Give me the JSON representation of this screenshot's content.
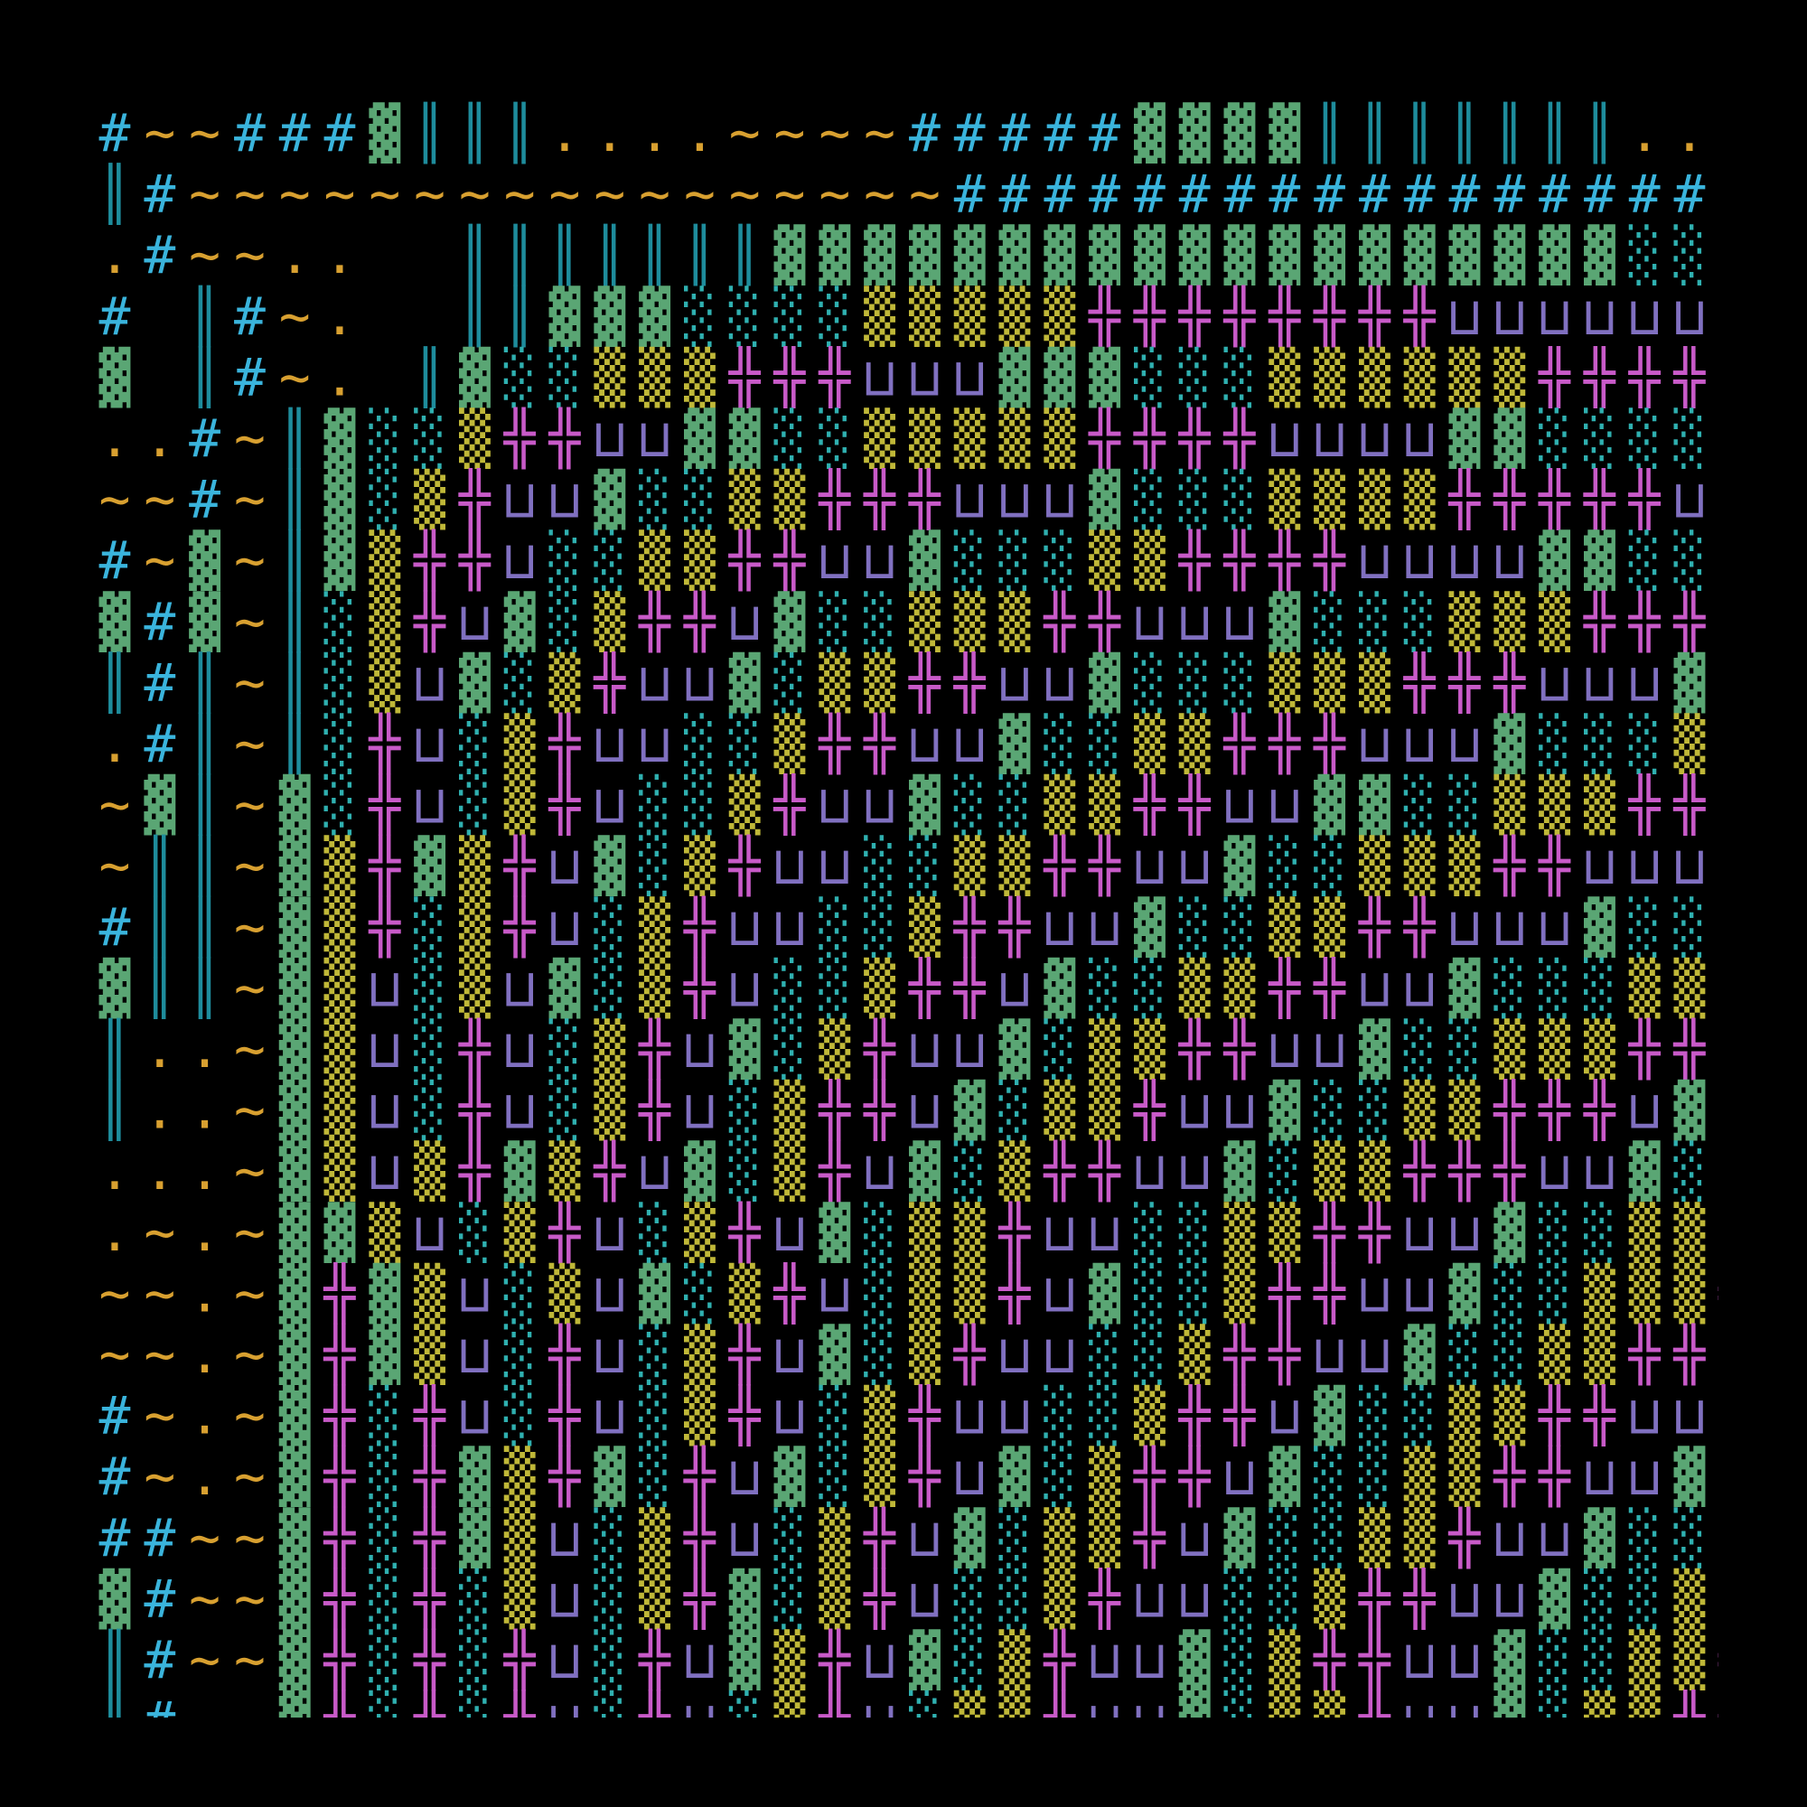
{
  "palette": {
    "#": "#3ab4dc",
    "~": "#d8a030",
    ".": "#d8a030",
    "║": "#1e8c9c",
    "▓": "#5aa674",
    "░": "#2fb0b0",
    "▒": "#c0b838",
    "╬": "#c85ac8",
    "⊔": "#8070c0"
  },
  "background": "#000000",
  "rows": [
    "#~~###▓║║║....~~~~#####▓▓▓▓║║║║║║║..",
    "║#~~~~~~~~~~~~~~~~~#################",
    ".#~~..  ║║║║║║║▓▓▓▓▓▓▓▓▓▓▓▓▓▓▓▓▓▓▓░░░",
    "# ║#~.  ║║▓▓▓░░░░▒▒▒▒▒╬╬╬╬╬╬╬╬⊔⊔⊔⊔⊔⊔",
    "▓ ║#~. ║▓░░▒▒▒╬╬╬⊔⊔⊔▓▓▓░░░▒▒▒▒▒▒╬╬╬╬",
    "..#~║▓░░▒╬╬⊔⊔▓▓░░▒▒▒▒▒╬╬╬╬⊔⊔⊔⊔▓▓░░░░",
    "~~#~║▓░▒╬⊔⊔▓░░▒▒╬╬╬⊔⊔⊔▓░░░▒▒▒▒╬╬╬╬╬⊔",
    "#~▓~║▓▒╬╬⊔░░▒▒╬╬⊔⊔▓░░░▒▒╬╬╬╬⊔⊔⊔⊔▓▓░░",
    "▓#▓~║░▒╬⊔▓░▒╬╬⊔▓░░▒▒▒╬╬⊔⊔⊔▓░░░▒▒▒╬╬╬",
    "║#║~║░▒⊔▓░▒╬⊔⊔▓░▒▒╬╬⊔⊔▓░░░▒▒▒╬╬╬⊔⊔⊔▓",
    ".#║~║░╬⊔░▒╬⊔⊔░░▒╬╬⊔⊔▓░░▒▒╬╬╬⊔⊔⊔▓░░░▒",
    "~▓║~▓░╬⊔░▒╬⊔░░▒╬⊔⊔▓░░▒▒╬╬⊔⊔▓▓░░▒▒▒╬╬",
    "~║║~▓▒╬▓▒╬⊔▓░▒╬⊔⊔░░▒▒╬╬⊔⊔▓░░▒▒▒╬╬⊔⊔⊔",
    "#║║~▓▒╬░▒╬⊔░▒╬⊔⊔░░▒╬╬⊔⊔▓░░▒▒╬╬⊔⊔⊔▓░░",
    "▓║║~▓▒⊔░▒⊔▓░▒╬⊔░░▒╬╬⊔▓░░▒▒╬╬⊔⊔▓░░░▒▒",
    "║..~▓▒⊔░╬⊔░▒╬⊔▓░▒╬⊔⊔▓░▒▒╬╬⊔⊔▓░░▒▒▒╬╬",
    "║..~▓▒⊔░╬⊔░▒╬⊔░▒╬╬⊔▓░▒▒╬⊔⊔▓░░▒▒╬╬╬⊔▓",
    "...~▓▒⊔▒╬▓▒╬⊔▓░▒╬⊔▓░▒╬╬⊔⊔▓░▒▒╬╬╬⊔⊔▓░",
    ".~.~▓▓▒⊔░▒╬⊔░▒╬⊔▓░▒▒╬⊔⊔░░▒▒╬╬⊔⊔▓░░▒▒",
    "~~.~▓╬▓▒⊔░▒⊔▓░▒╬⊔░▒▒╬⊔▓░░▒╬╬⊔⊔▓░░▒▒▒╬",
    "~~.~▓╬▓▒⊔░╬⊔░▒╬⊔▓░▒╬⊔⊔░░▒╬╬⊔⊔▓░░▒▒╬╬⊔",
    "#~.~▓╬░╬⊔░╬⊔░▒╬⊔░▒╬⊔⊔░░▒╬╬⊔▓░░▒▒╬╬⊔⊔▓",
    "#~.~▓╬░╬▓▒╬▓░╬⊔▓░▒╬⊔▓░▒╬╬⊔▓░░▒▒╬╬⊔⊔▓░",
    "##~~▓╬░╬▓▒⊔░▒╬⊔░▒╬⊔▓░▒▒╬⊔▓░░▒▒╬⊔⊔▓░░▒",
    "▓#~~▓╬░╬░▒⊔░▒╬▓░▒╬⊔░░▒╬⊔⊔░░▒╬╬⊔⊔▓░░▒▒",
    "║#~~▓╬░╬░╬⊔░╬⊔▓▒╬⊔▓░▒╬⊔⊔▓░▒╬╬⊔⊔▓░░▒▒╬",
    "║#~~▓╬░╬░╬⊔░╬⊔░▒╬⊔░▒▒╬⊔⊔▓░▒▒╬⊔⊔▓░▒▒╬╬"
  ]
}
